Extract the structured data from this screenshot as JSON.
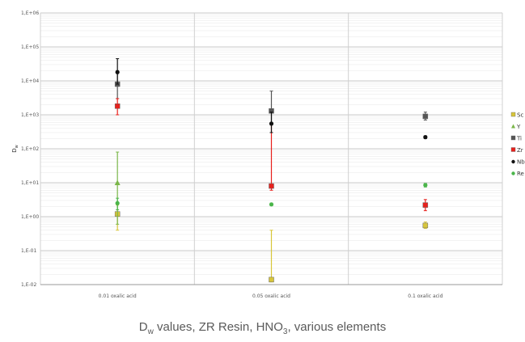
{
  "caption": {
    "d": "D",
    "w": "w",
    "part1": " values, ZR Resin, HNO",
    "sub3": "3",
    "part2": ", various elements"
  },
  "chart_data": {
    "type": "scatter",
    "ylabel": "D",
    "ylabel_sub": "w",
    "y_scale": "log",
    "ylim": [
      0.01,
      1000000
    ],
    "y_ticks": [
      "1,E-02",
      "1,E-01",
      "1,E+00",
      "1,E+01",
      "1,E+02",
      "1,E+03",
      "1,E+04",
      "1,E+05",
      "1,E+06"
    ],
    "categories": [
      "0.01 oxalic acid",
      "0.05 oxalic acid",
      "0.1 oxalic acid"
    ],
    "grid": true,
    "legend_position": "right",
    "series": [
      {
        "name": "Sc",
        "color": "#d8c63a",
        "marker": "square",
        "points": [
          {
            "x": 0,
            "y": 1.2,
            "err_low": 0.4,
            "err_high": 2.2
          },
          {
            "x": 1,
            "y": 0.014,
            "err_low": 0.012,
            "err_high": 0.4
          },
          {
            "x": 2,
            "y": 0.55,
            "err_low": 0.45,
            "err_high": 0.7
          }
        ]
      },
      {
        "name": "Y",
        "color": "#7ab648",
        "marker": "triangle",
        "points": [
          {
            "x": 0,
            "y": 10,
            "err_low": 0.6,
            "err_high": 80
          }
        ]
      },
      {
        "name": "Ti",
        "color": "#555555",
        "marker": "square",
        "points": [
          {
            "x": 0,
            "y": 8000,
            "err_low": 3000,
            "err_high": 20000
          },
          {
            "x": 1,
            "y": 1300,
            "err_low": 500,
            "err_high": 5000
          },
          {
            "x": 2,
            "y": 900,
            "err_low": 700,
            "err_high": 1200
          }
        ]
      },
      {
        "name": "Zr",
        "color": "#e8201c",
        "marker": "square",
        "points": [
          {
            "x": 0,
            "y": 1800,
            "err_low": 1000,
            "err_high": 3000
          },
          {
            "x": 1,
            "y": 8,
            "err_low": 6,
            "err_high": 550
          },
          {
            "x": 2,
            "y": 2.2,
            "err_low": 1.5,
            "err_high": 3.2
          }
        ]
      },
      {
        "name": "Nb",
        "color": "#111111",
        "marker": "dot",
        "points": [
          {
            "x": 0,
            "y": 18000,
            "err_low": 8000,
            "err_high": 45000
          },
          {
            "x": 1,
            "y": 550,
            "err_low": 300,
            "err_high": 1200
          },
          {
            "x": 2,
            "y": 220,
            "err_low": 200,
            "err_high": 240
          }
        ]
      },
      {
        "name": "Re",
        "color": "#4ab54a",
        "marker": "dot",
        "points": [
          {
            "x": 0,
            "y": 2.5,
            "err_low": 1.6,
            "err_high": 3.5
          },
          {
            "x": 1,
            "y": 2.3,
            "err_low": 2.1,
            "err_high": 2.5
          },
          {
            "x": 2,
            "y": 8.5,
            "err_low": 7.5,
            "err_high": 9.5
          }
        ]
      }
    ]
  }
}
